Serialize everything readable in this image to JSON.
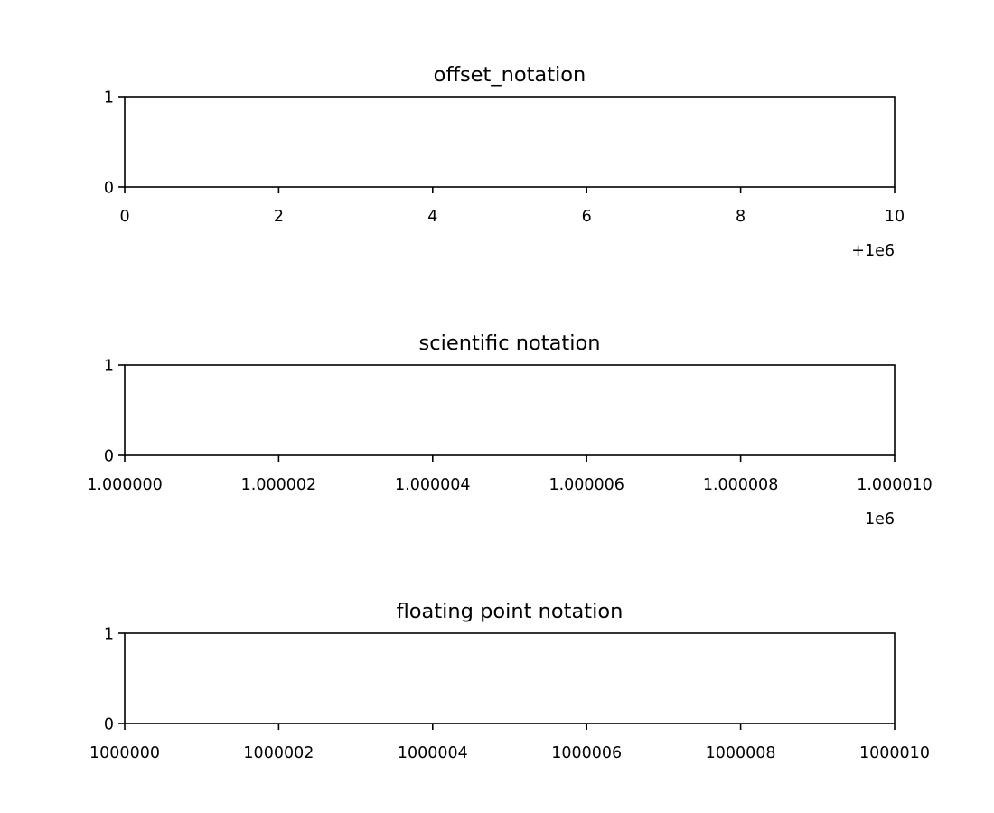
{
  "chart_data": [
    {
      "type": "line",
      "title": "offset_notation",
      "x_ticks": [
        0,
        2,
        4,
        6,
        8,
        10
      ],
      "x_tick_labels": [
        "0",
        "2",
        "4",
        "6",
        "8",
        "10"
      ],
      "x_offset_label": "+1e6",
      "xlim": [
        1000000,
        1000010
      ],
      "y_ticks": [
        0,
        1
      ],
      "y_tick_labels": [
        "0",
        "1"
      ],
      "ylim": [
        0,
        1
      ],
      "series": [],
      "grid": false
    },
    {
      "type": "line",
      "title": "scientific notation",
      "x_ticks": [
        1000000,
        1000002,
        1000004,
        1000006,
        1000008,
        1000010
      ],
      "x_tick_labels": [
        "1.000000",
        "1.000002",
        "1.000004",
        "1.000006",
        "1.000008",
        "1.000010"
      ],
      "x_offset_label": "1e6",
      "xlim": [
        1000000,
        1000010
      ],
      "y_ticks": [
        0,
        1
      ],
      "y_tick_labels": [
        "0",
        "1"
      ],
      "ylim": [
        0,
        1
      ],
      "series": [],
      "grid": false
    },
    {
      "type": "line",
      "title": "floating point notation",
      "x_ticks": [
        1000000,
        1000002,
        1000004,
        1000006,
        1000008,
        1000010
      ],
      "x_tick_labels": [
        "1000000",
        "1000002",
        "1000004",
        "1000006",
        "1000008",
        "1000010"
      ],
      "x_offset_label": "",
      "xlim": [
        1000000,
        1000010
      ],
      "y_ticks": [
        0,
        1
      ],
      "y_tick_labels": [
        "0",
        "1"
      ],
      "ylim": [
        0,
        1
      ],
      "series": [],
      "grid": false
    }
  ]
}
